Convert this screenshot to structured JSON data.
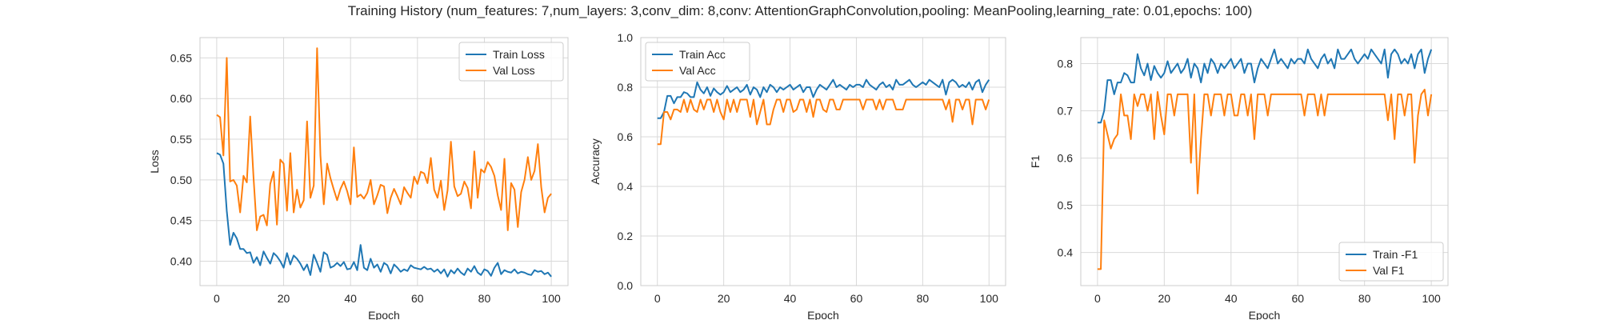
{
  "suptitle": "Training History (num_features: 7,num_layers: 3,conv_dim: 8,conv: AttentionGraphConvolution,pooling: MeanPooling,learning_rate: 0.01,epochs: 100)",
  "colors": {
    "train": "#1f77b4",
    "val": "#ff7f0e",
    "grid": "#d9d9d9",
    "frame": "#cccccc"
  },
  "chart_data": [
    {
      "type": "line",
      "xlabel": "Epoch",
      "ylabel": "Loss",
      "xlim": [
        -5,
        105
      ],
      "ylim": [
        0.37,
        0.675
      ],
      "xticks": [
        0,
        20,
        40,
        60,
        80,
        100
      ],
      "yticks": [
        0.4,
        0.45,
        0.5,
        0.55,
        0.6,
        0.65
      ],
      "ytick_labels": [
        "0.40",
        "0.45",
        "0.50",
        "0.55",
        "0.60",
        "0.65"
      ],
      "grid": true,
      "legend_position": "top-right",
      "series": [
        {
          "name": "Train Loss",
          "color": "#1f77b4",
          "values": [
            0.533,
            0.531,
            0.52,
            0.462,
            0.42,
            0.435,
            0.428,
            0.415,
            0.415,
            0.41,
            0.411,
            0.398,
            0.405,
            0.395,
            0.412,
            0.404,
            0.397,
            0.41,
            0.406,
            0.4,
            0.392,
            0.41,
            0.396,
            0.407,
            0.403,
            0.397,
            0.389,
            0.396,
            0.383,
            0.408,
            0.398,
            0.387,
            0.411,
            0.408,
            0.392,
            0.394,
            0.398,
            0.394,
            0.399,
            0.39,
            0.391,
            0.399,
            0.389,
            0.42,
            0.392,
            0.389,
            0.403,
            0.392,
            0.396,
            0.387,
            0.398,
            0.395,
            0.385,
            0.396,
            0.392,
            0.387,
            0.39,
            0.388,
            0.395,
            0.392,
            0.391,
            0.39,
            0.393,
            0.39,
            0.391,
            0.387,
            0.39,
            0.385,
            0.39,
            0.381,
            0.389,
            0.385,
            0.391,
            0.386,
            0.383,
            0.391,
            0.387,
            0.394,
            0.386,
            0.383,
            0.39,
            0.388,
            0.382,
            0.392,
            0.398,
            0.384,
            0.389,
            0.387,
            0.386,
            0.39,
            0.385,
            0.387,
            0.386,
            0.384,
            0.383,
            0.389,
            0.387,
            0.388,
            0.384,
            0.386,
            0.381
          ]
        },
        {
          "name": "Val Loss",
          "color": "#ff7f0e",
          "values": [
            0.58,
            0.577,
            0.53,
            0.65,
            0.498,
            0.5,
            0.493,
            0.46,
            0.505,
            0.497,
            0.578,
            0.503,
            0.438,
            0.455,
            0.457,
            0.444,
            0.495,
            0.51,
            0.445,
            0.525,
            0.52,
            0.462,
            0.533,
            0.46,
            0.488,
            0.466,
            0.475,
            0.572,
            0.478,
            0.493,
            0.662,
            0.53,
            0.47,
            0.52,
            0.502,
            0.488,
            0.475,
            0.489,
            0.498,
            0.486,
            0.47,
            0.54,
            0.479,
            0.482,
            0.477,
            0.484,
            0.5,
            0.47,
            0.481,
            0.494,
            0.492,
            0.459,
            0.478,
            0.489,
            0.48,
            0.47,
            0.491,
            0.484,
            0.478,
            0.504,
            0.495,
            0.51,
            0.508,
            0.496,
            0.527,
            0.488,
            0.478,
            0.499,
            0.463,
            0.487,
            0.547,
            0.492,
            0.48,
            0.483,
            0.498,
            0.49,
            0.465,
            0.535,
            0.478,
            0.513,
            0.509,
            0.522,
            0.516,
            0.505,
            0.481,
            0.463,
            0.526,
            0.438,
            0.496,
            0.488,
            0.442,
            0.485,
            0.5,
            0.528,
            0.5,
            0.511,
            0.544,
            0.491,
            0.46,
            0.478,
            0.483
          ]
        }
      ]
    },
    {
      "type": "line",
      "xlabel": "Epoch",
      "ylabel": "Accuracy",
      "xlim": [
        -5,
        105
      ],
      "ylim": [
        0.0,
        1.0
      ],
      "xticks": [
        0,
        20,
        40,
        60,
        80,
        100
      ],
      "yticks": [
        0.0,
        0.2,
        0.4,
        0.6,
        0.8,
        1.0
      ],
      "ytick_labels": [
        "0.0",
        "0.2",
        "0.4",
        "0.6",
        "0.8",
        "1.0"
      ],
      "grid": true,
      "legend_position": "top-left",
      "series": [
        {
          "name": "Train Acc",
          "color": "#1f77b4",
          "values": [
            0.675,
            0.675,
            0.7,
            0.765,
            0.765,
            0.735,
            0.76,
            0.76,
            0.78,
            0.775,
            0.76,
            0.76,
            0.82,
            0.79,
            0.775,
            0.8,
            0.765,
            0.795,
            0.78,
            0.77,
            0.78,
            0.805,
            0.78,
            0.79,
            0.8,
            0.78,
            0.79,
            0.81,
            0.77,
            0.8,
            0.79,
            0.76,
            0.8,
            0.78,
            0.81,
            0.8,
            0.78,
            0.8,
            0.79,
            0.8,
            0.81,
            0.79,
            0.8,
            0.81,
            0.78,
            0.8,
            0.8,
            0.76,
            0.79,
            0.81,
            0.8,
            0.79,
            0.81,
            0.83,
            0.8,
            0.81,
            0.8,
            0.79,
            0.81,
            0.8,
            0.81,
            0.81,
            0.8,
            0.83,
            0.81,
            0.8,
            0.79,
            0.81,
            0.82,
            0.8,
            0.81,
            0.79,
            0.83,
            0.81,
            0.81,
            0.82,
            0.83,
            0.81,
            0.8,
            0.81,
            0.82,
            0.81,
            0.83,
            0.82,
            0.81,
            0.8,
            0.83,
            0.77,
            0.82,
            0.83,
            0.82,
            0.8,
            0.81,
            0.8,
            0.82,
            0.79,
            0.82,
            0.83,
            0.78,
            0.81,
            0.83
          ]
        },
        {
          "name": "Val Acc",
          "color": "#ff7f0e",
          "values": [
            0.57,
            0.57,
            0.7,
            0.7,
            0.67,
            0.71,
            0.71,
            0.7,
            0.75,
            0.7,
            0.75,
            0.71,
            0.7,
            0.75,
            0.71,
            0.75,
            0.75,
            0.7,
            0.75,
            0.7,
            0.67,
            0.75,
            0.7,
            0.75,
            0.7,
            0.75,
            0.75,
            0.75,
            0.68,
            0.75,
            0.65,
            0.7,
            0.75,
            0.65,
            0.65,
            0.71,
            0.75,
            0.75,
            0.7,
            0.75,
            0.75,
            0.7,
            0.71,
            0.75,
            0.75,
            0.7,
            0.75,
            0.68,
            0.75,
            0.75,
            0.71,
            0.7,
            0.75,
            0.75,
            0.71,
            0.71,
            0.75,
            0.75,
            0.75,
            0.75,
            0.75,
            0.75,
            0.71,
            0.75,
            0.75,
            0.75,
            0.71,
            0.75,
            0.71,
            0.75,
            0.75,
            0.75,
            0.71,
            0.71,
            0.71,
            0.75,
            0.75,
            0.75,
            0.75,
            0.75,
            0.75,
            0.75,
            0.75,
            0.75,
            0.75,
            0.75,
            0.75,
            0.71,
            0.75,
            0.66,
            0.75,
            0.75,
            0.71,
            0.75,
            0.75,
            0.65,
            0.75,
            0.75,
            0.75,
            0.71,
            0.75
          ]
        }
      ]
    },
    {
      "type": "line",
      "xlabel": "Epoch",
      "ylabel": "F1",
      "xlim": [
        -5,
        105
      ],
      "ylim": [
        0.33,
        0.855
      ],
      "xticks": [
        0,
        20,
        40,
        60,
        80,
        100
      ],
      "yticks": [
        0.4,
        0.5,
        0.6,
        0.7,
        0.8
      ],
      "ytick_labels": [
        "0.4",
        "0.5",
        "0.6",
        "0.7",
        "0.8"
      ],
      "grid": true,
      "legend_position": "bottom-right",
      "series": [
        {
          "name": "Train -F1",
          "color": "#1f77b4",
          "values": [
            0.675,
            0.675,
            0.7,
            0.765,
            0.765,
            0.735,
            0.76,
            0.76,
            0.78,
            0.775,
            0.76,
            0.76,
            0.82,
            0.79,
            0.775,
            0.8,
            0.765,
            0.795,
            0.78,
            0.77,
            0.78,
            0.805,
            0.78,
            0.79,
            0.8,
            0.78,
            0.79,
            0.81,
            0.77,
            0.8,
            0.79,
            0.76,
            0.8,
            0.78,
            0.81,
            0.8,
            0.78,
            0.8,
            0.79,
            0.8,
            0.81,
            0.79,
            0.8,
            0.81,
            0.78,
            0.8,
            0.8,
            0.76,
            0.79,
            0.81,
            0.8,
            0.79,
            0.81,
            0.83,
            0.8,
            0.81,
            0.8,
            0.79,
            0.81,
            0.8,
            0.81,
            0.81,
            0.8,
            0.83,
            0.81,
            0.8,
            0.79,
            0.81,
            0.82,
            0.8,
            0.81,
            0.79,
            0.83,
            0.81,
            0.81,
            0.82,
            0.83,
            0.81,
            0.8,
            0.81,
            0.82,
            0.81,
            0.83,
            0.82,
            0.81,
            0.8,
            0.83,
            0.77,
            0.82,
            0.83,
            0.82,
            0.8,
            0.81,
            0.8,
            0.82,
            0.79,
            0.82,
            0.83,
            0.78,
            0.81,
            0.83
          ]
        },
        {
          "name": "Val F1",
          "color": "#ff7f0e",
          "values": [
            0.365,
            0.365,
            0.68,
            0.65,
            0.62,
            0.64,
            0.65,
            0.735,
            0.69,
            0.69,
            0.64,
            0.735,
            0.71,
            0.735,
            0.735,
            0.7,
            0.735,
            0.64,
            0.74,
            0.69,
            0.65,
            0.735,
            0.735,
            0.69,
            0.735,
            0.735,
            0.735,
            0.735,
            0.59,
            0.735,
            0.525,
            0.64,
            0.735,
            0.735,
            0.69,
            0.735,
            0.735,
            0.735,
            0.69,
            0.735,
            0.735,
            0.69,
            0.69,
            0.735,
            0.735,
            0.69,
            0.735,
            0.64,
            0.735,
            0.735,
            0.735,
            0.69,
            0.735,
            0.735,
            0.735,
            0.735,
            0.735,
            0.735,
            0.735,
            0.735,
            0.735,
            0.735,
            0.69,
            0.735,
            0.735,
            0.735,
            0.69,
            0.735,
            0.69,
            0.735,
            0.735,
            0.735,
            0.735,
            0.735,
            0.735,
            0.735,
            0.735,
            0.735,
            0.735,
            0.735,
            0.735,
            0.735,
            0.735,
            0.735,
            0.735,
            0.735,
            0.735,
            0.68,
            0.735,
            0.64,
            0.735,
            0.735,
            0.69,
            0.735,
            0.735,
            0.59,
            0.69,
            0.735,
            0.745,
            0.69,
            0.735
          ]
        }
      ]
    }
  ]
}
